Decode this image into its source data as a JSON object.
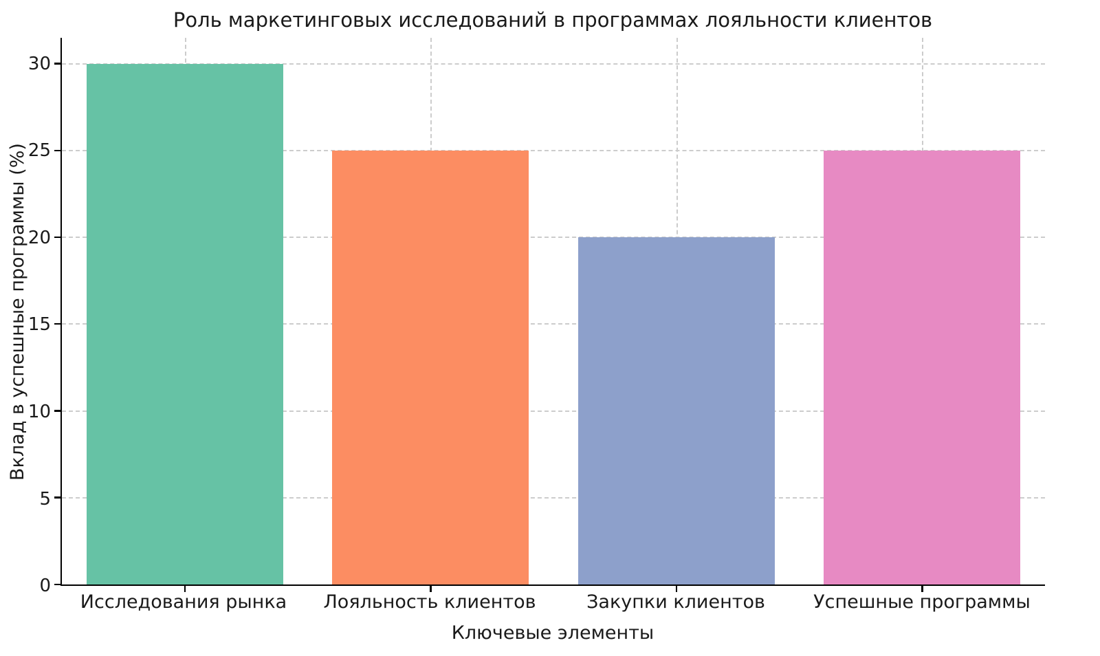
{
  "chart_data": {
    "type": "bar",
    "title": "Роль маркетинговых исследований в программах лояльности клиентов",
    "xlabel": "Ключевые элементы",
    "ylabel": "Вклад в успешные программы (%)",
    "categories": [
      "Исследования рынка",
      "Лояльность клиентов",
      "Закупки клиентов",
      "Успешные программы"
    ],
    "values": [
      30,
      25,
      20,
      25
    ],
    "colors": [
      "#66c2a5",
      "#fc8d62",
      "#8da0cb",
      "#e78ac3"
    ],
    "yticks": [
      0,
      5,
      10,
      15,
      20,
      25,
      30
    ],
    "ylim": [
      0,
      31.5
    ],
    "bar_width_fraction": 0.8,
    "grid": "dashed",
    "grid_color": "#cccccc",
    "axis_color": "#000000",
    "background": "#ffffff",
    "legend": "none"
  }
}
